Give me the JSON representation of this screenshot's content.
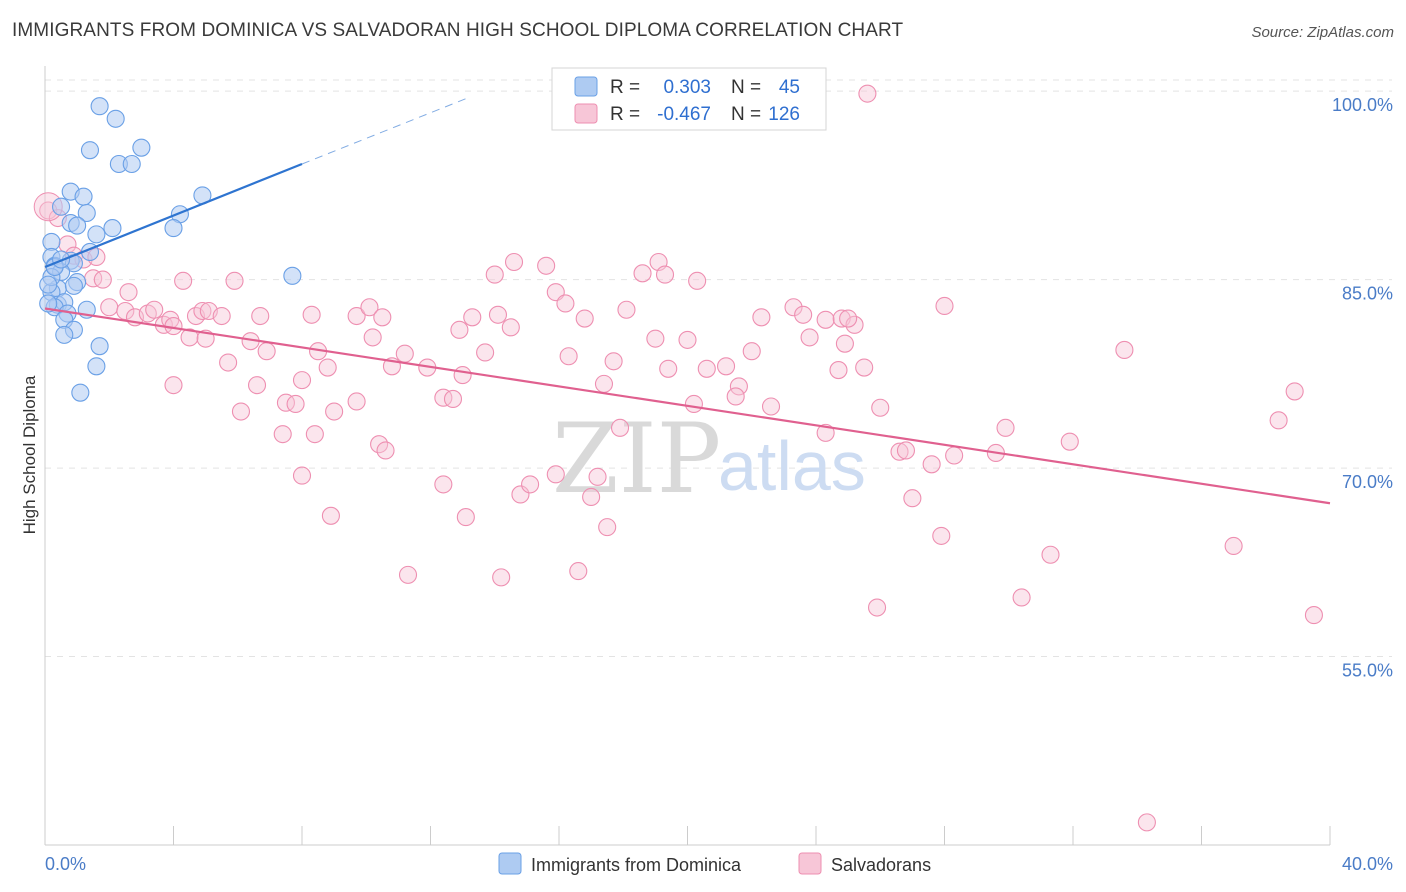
{
  "header": {
    "title": "IMMIGRANTS FROM DOMINICA VS SALVADORAN HIGH SCHOOL DIPLOMA CORRELATION CHART",
    "source": "Source: ZipAtlas.com"
  },
  "watermark": {
    "zip": "ZIP",
    "atlas": "atlas"
  },
  "colors": {
    "blue": "#6aa0e6",
    "blue_fill": "#aecbf2",
    "blue_line": "#2e74d0",
    "pink": "#ee8fb1",
    "pink_fill": "#f7c6d7",
    "pink_line": "#e0608f",
    "grid": "#e3e3e3",
    "tick_text": "#4a7cc7"
  },
  "legend": {
    "rows": [
      {
        "r_label": "R =",
        "r_value": "0.303",
        "n_label": "N =",
        "n_value": "45"
      },
      {
        "r_label": "R =",
        "r_value": "-0.467",
        "n_label": "N =",
        "n_value": "126"
      }
    ]
  },
  "chart_data": {
    "type": "scatter",
    "title": "IMMIGRANTS FROM DOMINICA VS SALVADORAN HIGH SCHOOL DIPLOMA CORRELATION CHART",
    "xlabel": "",
    "ylabel": "High School Diploma",
    "xlim": [
      0,
      40
    ],
    "ylim": [
      40,
      102
    ],
    "x_tick_labels": [
      "0.0%",
      "40.0%"
    ],
    "y_ticks": [
      55,
      70,
      85,
      100
    ],
    "y_tick_labels": [
      "55.0%",
      "70.0%",
      "85.0%",
      "100.0%"
    ],
    "grid": true,
    "series": [
      {
        "name": "Immigrants from Dominica",
        "R": 0.303,
        "N": 45,
        "trend": {
          "x": [
            0,
            8
          ],
          "y": [
            86.0,
            94.2
          ],
          "dashed_to": [
            13.2,
            99.5
          ]
        },
        "points": [
          [
            1.7,
            98.8
          ],
          [
            2.2,
            97.8
          ],
          [
            1.4,
            95.3
          ],
          [
            3.0,
            95.5
          ],
          [
            2.3,
            94.2
          ],
          [
            2.7,
            94.2
          ],
          [
            0.8,
            92.0
          ],
          [
            1.2,
            91.6
          ],
          [
            4.9,
            91.7
          ],
          [
            0.5,
            90.8
          ],
          [
            1.3,
            90.3
          ],
          [
            4.2,
            90.2
          ],
          [
            0.8,
            89.5
          ],
          [
            1.0,
            89.3
          ],
          [
            2.1,
            89.1
          ],
          [
            4.0,
            89.1
          ],
          [
            1.6,
            88.6
          ],
          [
            0.2,
            88.0
          ],
          [
            1.4,
            87.2
          ],
          [
            0.2,
            86.8
          ],
          [
            0.8,
            86.5
          ],
          [
            0.3,
            86.1
          ],
          [
            0.9,
            86.3
          ],
          [
            0.5,
            85.6
          ],
          [
            7.7,
            85.3
          ],
          [
            1.0,
            84.8
          ],
          [
            0.4,
            84.3
          ],
          [
            0.2,
            84.0
          ],
          [
            0.9,
            84.5
          ],
          [
            0.4,
            83.0
          ],
          [
            0.6,
            83.2
          ],
          [
            0.3,
            82.8
          ],
          [
            1.3,
            82.6
          ],
          [
            0.7,
            82.3
          ],
          [
            0.6,
            81.8
          ],
          [
            0.9,
            81.0
          ],
          [
            0.6,
            80.6
          ],
          [
            1.7,
            79.7
          ],
          [
            1.6,
            78.1
          ],
          [
            1.1,
            76.0
          ],
          [
            0.2,
            85.2
          ],
          [
            0.1,
            84.6
          ],
          [
            0.3,
            86.0
          ],
          [
            0.5,
            86.6
          ],
          [
            0.1,
            83.1
          ]
        ]
      },
      {
        "name": "Salvadorans",
        "R": -0.467,
        "N": 126,
        "trend": {
          "x": [
            0,
            40
          ],
          "y": [
            82.7,
            67.2
          ]
        },
        "points": [
          [
            0.1,
            90.5
          ],
          [
            0.4,
            89.9
          ],
          [
            0.7,
            87.8
          ],
          [
            0.9,
            86.9
          ],
          [
            1.2,
            86.6
          ],
          [
            1.6,
            86.8
          ],
          [
            1.5,
            85.1
          ],
          [
            1.8,
            85.0
          ],
          [
            2.6,
            84.0
          ],
          [
            4.3,
            84.9
          ],
          [
            5.9,
            84.9
          ],
          [
            2.0,
            82.8
          ],
          [
            2.5,
            82.5
          ],
          [
            2.8,
            82.0
          ],
          [
            3.2,
            82.3
          ],
          [
            3.4,
            82.6
          ],
          [
            3.7,
            81.4
          ],
          [
            3.9,
            81.8
          ],
          [
            4.0,
            81.3
          ],
          [
            4.5,
            80.4
          ],
          [
            4.7,
            82.1
          ],
          [
            4.9,
            82.5
          ],
          [
            5.1,
            82.5
          ],
          [
            5.5,
            82.1
          ],
          [
            5.0,
            80.3
          ],
          [
            6.4,
            80.1
          ],
          [
            6.7,
            82.1
          ],
          [
            5.7,
            78.4
          ],
          [
            6.9,
            79.3
          ],
          [
            4.0,
            76.6
          ],
          [
            6.6,
            76.6
          ],
          [
            6.1,
            74.5
          ],
          [
            7.5,
            75.2
          ],
          [
            7.8,
            75.1
          ],
          [
            8.0,
            77.0
          ],
          [
            8.5,
            79.3
          ],
          [
            8.8,
            78.0
          ],
          [
            8.3,
            82.2
          ],
          [
            9.0,
            74.5
          ],
          [
            9.7,
            82.1
          ],
          [
            10.1,
            82.8
          ],
          [
            10.5,
            82.0
          ],
          [
            10.2,
            80.4
          ],
          [
            11.2,
            79.1
          ],
          [
            10.8,
            78.1
          ],
          [
            11.9,
            78.0
          ],
          [
            9.7,
            75.3
          ],
          [
            7.4,
            72.7
          ],
          [
            8.4,
            72.7
          ],
          [
            8.0,
            69.4
          ],
          [
            8.9,
            66.2
          ],
          [
            10.4,
            71.9
          ],
          [
            10.6,
            71.4
          ],
          [
            12.4,
            75.6
          ],
          [
            12.7,
            75.5
          ],
          [
            13.0,
            77.4
          ],
          [
            12.9,
            81.0
          ],
          [
            13.3,
            82.0
          ],
          [
            13.7,
            79.2
          ],
          [
            14.1,
            82.2
          ],
          [
            14.5,
            81.2
          ],
          [
            14.0,
            85.4
          ],
          [
            14.6,
            86.4
          ],
          [
            15.6,
            86.1
          ],
          [
            15.9,
            84.0
          ],
          [
            16.2,
            83.1
          ],
          [
            16.8,
            81.9
          ],
          [
            16.3,
            78.9
          ],
          [
            17.7,
            78.5
          ],
          [
            17.4,
            76.7
          ],
          [
            18.1,
            82.6
          ],
          [
            17.9,
            73.2
          ],
          [
            19.0,
            80.3
          ],
          [
            19.1,
            86.4
          ],
          [
            18.6,
            85.5
          ],
          [
            19.3,
            85.4
          ],
          [
            20.0,
            80.2
          ],
          [
            19.4,
            77.9
          ],
          [
            20.2,
            75.1
          ],
          [
            20.6,
            77.9
          ],
          [
            20.3,
            84.9
          ],
          [
            21.2,
            78.1
          ],
          [
            21.6,
            76.5
          ],
          [
            21.5,
            75.7
          ],
          [
            22.3,
            82.0
          ],
          [
            22.0,
            79.3
          ],
          [
            22.6,
            74.9
          ],
          [
            23.3,
            82.8
          ],
          [
            23.6,
            82.2
          ],
          [
            23.8,
            80.4
          ],
          [
            24.3,
            81.8
          ],
          [
            24.8,
            81.9
          ],
          [
            24.7,
            77.8
          ],
          [
            24.9,
            79.9
          ],
          [
            25.5,
            78.0
          ],
          [
            25.2,
            81.4
          ],
          [
            25.0,
            81.9
          ],
          [
            24.3,
            72.8
          ],
          [
            25.6,
            99.8
          ],
          [
            17.2,
            69.3
          ],
          [
            17.0,
            67.7
          ],
          [
            15.9,
            69.5
          ],
          [
            17.5,
            65.3
          ],
          [
            16.6,
            61.8
          ],
          [
            12.4,
            68.7
          ],
          [
            13.1,
            66.1
          ],
          [
            14.2,
            61.3
          ],
          [
            11.3,
            61.5
          ],
          [
            14.8,
            67.9
          ],
          [
            15.1,
            68.7
          ],
          [
            26.0,
            74.8
          ],
          [
            26.6,
            71.3
          ],
          [
            26.8,
            71.4
          ],
          [
            27.0,
            67.6
          ],
          [
            27.6,
            70.3
          ],
          [
            27.9,
            64.6
          ],
          [
            28.3,
            71.0
          ],
          [
            28.0,
            82.9
          ],
          [
            29.6,
            71.2
          ],
          [
            29.9,
            73.2
          ],
          [
            30.4,
            59.7
          ],
          [
            31.3,
            63.1
          ],
          [
            31.9,
            72.1
          ],
          [
            33.6,
            79.4
          ],
          [
            34.3,
            41.8
          ],
          [
            37.0,
            63.8
          ],
          [
            38.4,
            73.8
          ],
          [
            38.9,
            76.1
          ],
          [
            39.5,
            58.3
          ],
          [
            25.9,
            58.9
          ]
        ]
      }
    ]
  },
  "bottom_legend": {
    "items": [
      {
        "label": "Immigrants from Dominica"
      },
      {
        "label": "Salvadorans"
      }
    ]
  }
}
